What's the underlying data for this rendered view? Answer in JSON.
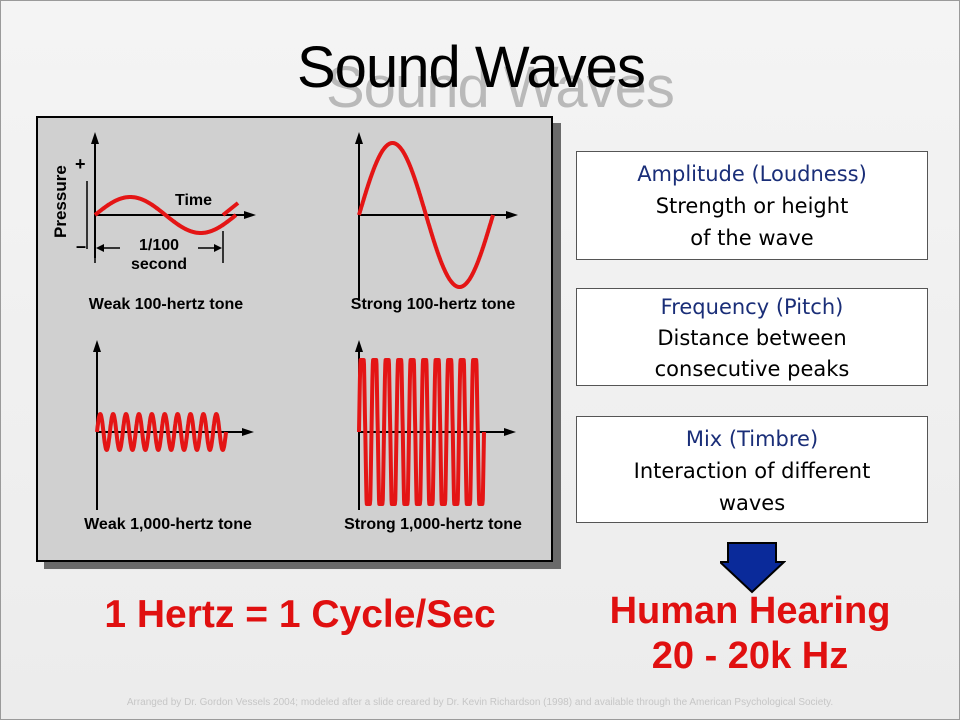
{
  "slide": {
    "title": "Sound Waves"
  },
  "figure": {
    "panels": [
      {
        "label": "Weak 100-hertz tone",
        "cycles": 1,
        "amplitude": "weak"
      },
      {
        "label": "Strong 100-hertz tone",
        "cycles": 1,
        "amplitude": "strong"
      },
      {
        "label": "Weak 1,000-hertz tone",
        "cycles": 10,
        "amplitude": "weak"
      },
      {
        "label": "Strong 1,000-hertz tone",
        "cycles": 10,
        "amplitude": "strong"
      }
    ],
    "pressure_label": "Pressure",
    "plus_sign": "+",
    "minus_sign": "–",
    "time_label": "Time",
    "period_label_line1": "1/100",
    "period_label_line2": "second",
    "wave_color": "#e41515"
  },
  "info_boxes": [
    {
      "heading": "Amplitude (Loudness)",
      "line1": "Strength or height",
      "line2": "of the wave"
    },
    {
      "heading": "Frequency (Pitch)",
      "line1": "Distance between",
      "line2": "consecutive peaks"
    },
    {
      "heading": "Mix (Timbre)",
      "line1": "Interaction of different",
      "line2": "waves"
    }
  ],
  "hertz_definition": "1 Hertz = 1 Cycle/Sec",
  "hearing": {
    "line1": "Human Hearing",
    "line2": "20 - 20k Hz"
  },
  "arrow_icon": "down-arrow-icon",
  "colors": {
    "accent_red": "#e01010",
    "arrow_blue": "#0a2a9a",
    "heading_blue": "#1a2e78"
  },
  "credit": "Arranged by Dr. Gordon Vessels 2004; modeled after a slide creared by Dr. Kevin Richardson (1998) and available through the American Psychological Society."
}
